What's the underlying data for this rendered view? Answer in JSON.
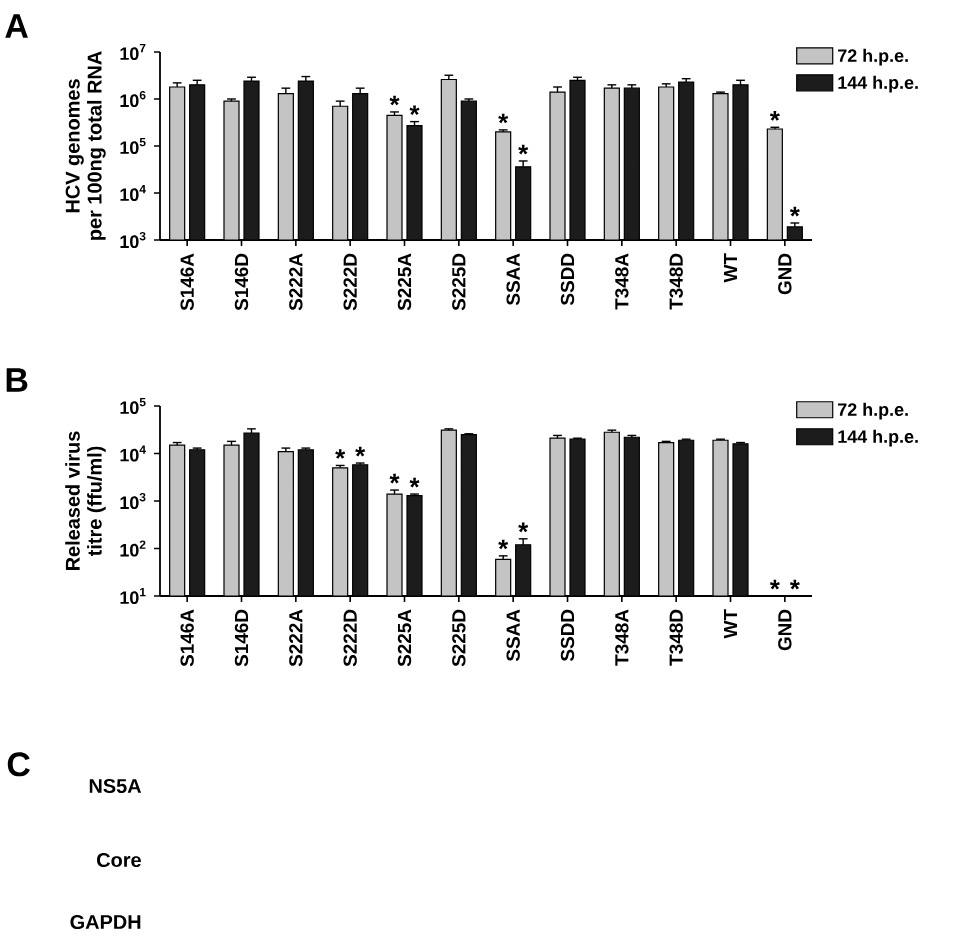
{
  "chart_data": [
    {
      "type": "bar",
      "title": "A",
      "ylabel": "HCV genomes\nper 100ng total RNA",
      "categories": [
        "S146A",
        "S146D",
        "S222A",
        "S222D",
        "S225A",
        "S225D",
        "SSAA",
        "SSDD",
        "T348A",
        "T348D",
        "WT",
        "GND"
      ],
      "log": true,
      "ylim": [
        1000,
        10000000
      ],
      "yticks": [
        {
          "value": 1000,
          "label": "10$^{3}$"
        },
        {
          "value": 10000,
          "label": "10$^{4}$"
        },
        {
          "value": 100000,
          "label": "10$^{5}$"
        },
        {
          "value": 1000000,
          "label": "10$^{6}$"
        },
        {
          "value": 10000000,
          "label": "10$^{7}$"
        }
      ],
      "legend": "top right",
      "series": [
        {
          "name": "72 h.p.e.",
          "color": "#c4c4c4",
          "values": [
            1800000,
            900000,
            1300000,
            700000,
            450000,
            2600000,
            200000,
            1400000,
            1700000,
            1800000,
            1300000,
            230000
          ],
          "errors": [
            [
              1800000,
              2200000
            ],
            [
              900000,
              1000000
            ],
            [
              1300000,
              1700000
            ],
            [
              700000,
              900000
            ],
            [
              450000,
              530000
            ],
            [
              2600000,
              3200000
            ],
            [
              200000,
              220000
            ],
            [
              1400000,
              1800000
            ],
            [
              1700000,
              2000000
            ],
            [
              1800000,
              2100000
            ],
            [
              1300000,
              1400000
            ],
            [
              230000,
              250000
            ]
          ],
          "value_labels": [
            null,
            null,
            null,
            null,
            "*",
            null,
            "*",
            null,
            null,
            null,
            null,
            "*"
          ]
        },
        {
          "name": "144 h.p.e.",
          "color": "#1c1c1c",
          "values": [
            2000000,
            2400000,
            2400000,
            1300000,
            270000,
            900000,
            36000,
            2500000,
            1700000,
            2300000,
            2000000,
            1900
          ],
          "errors": [
            [
              2000000,
              2500000
            ],
            [
              2400000,
              2900000
            ],
            [
              2400000,
              3000000
            ],
            [
              1300000,
              1700000
            ],
            [
              270000,
              330000
            ],
            [
              900000,
              1000000
            ],
            [
              36000,
              48000
            ],
            [
              2500000,
              2900000
            ],
            [
              1700000,
              2000000
            ],
            [
              2300000,
              2700000
            ],
            [
              2000000,
              2500000
            ],
            [
              1900,
              2300
            ]
          ],
          "value_labels": [
            null,
            null,
            null,
            null,
            "*",
            null,
            "*",
            null,
            null,
            null,
            null,
            "*"
          ]
        }
      ]
    },
    {
      "type": "bar",
      "title": "B",
      "ylabel": "Released virus\ntitre (ffu/ml)",
      "categories": [
        "S146A",
        "S146D",
        "S222A",
        "S222D",
        "S225A",
        "S225D",
        "SSAA",
        "SSDD",
        "T348A",
        "T348D",
        "WT",
        "GND"
      ],
      "log": true,
      "ylim": [
        10,
        100000
      ],
      "yticks": [
        {
          "value": 10,
          "label": "10$^{1}$"
        },
        {
          "value": 100,
          "label": "10$^{2}$"
        },
        {
          "value": 1000,
          "label": "10$^{3}$"
        },
        {
          "value": 10000,
          "label": "10$^{4}$"
        },
        {
          "value": 100000,
          "label": "10$^{5}$"
        }
      ],
      "legend": "top right",
      "series": [
        {
          "name": "72 h.p.e.",
          "color": "#c4c4c4",
          "values": [
            15000,
            15000,
            11000,
            5000,
            1400,
            31000,
            59,
            21000,
            28000,
            17000,
            19000,
            null
          ],
          "errors": [
            [
              15000,
              17000
            ],
            [
              15000,
              18000
            ],
            [
              11000,
              13000
            ],
            [
              5000,
              5600
            ],
            [
              1400,
              1700
            ],
            [
              31000,
              33000
            ],
            [
              59,
              70
            ],
            [
              21000,
              24000
            ],
            [
              28000,
              31000
            ],
            [
              17000,
              18000
            ],
            [
              19000,
              20000
            ],
            null
          ],
          "value_labels": [
            null,
            null,
            null,
            "*",
            "*",
            null,
            "*",
            null,
            null,
            null,
            null,
            "*"
          ]
        },
        {
          "name": "144 h.p.e.",
          "color": "#1c1c1c",
          "values": [
            12000,
            27000,
            12000,
            5800,
            1300,
            25000,
            120,
            20000,
            22000,
            19000,
            16000,
            null
          ],
          "errors": [
            [
              12000,
              13000
            ],
            [
              27000,
              33000
            ],
            [
              12000,
              13000
            ],
            [
              5800,
              6300
            ],
            [
              1300,
              1400
            ],
            [
              25000,
              26000
            ],
            [
              120,
              160
            ],
            [
              20000,
              21000
            ],
            [
              22000,
              24000
            ],
            [
              19000,
              20000
            ],
            [
              16000,
              17000
            ],
            null
          ],
          "value_labels": [
            null,
            null,
            null,
            "*",
            "*",
            null,
            "*",
            null,
            null,
            null,
            null,
            "*"
          ]
        }
      ]
    },
    {
      "type": "other",
      "title": "C",
      "annotations": [
        "NS5A",
        "Core",
        "GAPDH"
      ]
    }
  ]
}
